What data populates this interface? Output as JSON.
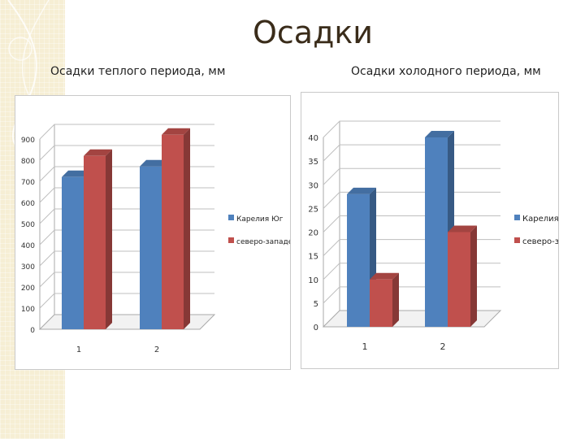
{
  "slide": {
    "title": "Осадки",
    "left_subtitle": "Осадки теплого периода, мм",
    "right_subtitle": "Осадки холодного периода, мм"
  },
  "colors": {
    "series1": "#4f81bd",
    "series2": "#c0504d",
    "grid": "#bfbfbf",
    "deco": "#f6eed4"
  },
  "chart_data": [
    {
      "type": "bar",
      "categories": [
        "1",
        "2"
      ],
      "series": [
        {
          "name": "Карелия Юг",
          "values": [
            720,
            770
          ]
        },
        {
          "name": "северо-западе",
          "values": [
            820,
            920
          ]
        }
      ],
      "yticks": [
        0,
        100,
        200,
        300,
        400,
        500,
        600,
        700,
        800,
        900
      ],
      "ylim": [
        0,
        900
      ],
      "legend": "right",
      "grid": true
    },
    {
      "type": "bar",
      "categories": [
        "1",
        "2"
      ],
      "series": [
        {
          "name": "Карелия Юг",
          "values": [
            28,
            40
          ]
        },
        {
          "name": "северо-западе",
          "values": [
            10,
            20
          ]
        }
      ],
      "yticks": [
        0,
        5,
        10,
        15,
        20,
        25,
        30,
        35,
        40
      ],
      "ylim": [
        0,
        40
      ],
      "legend": "right",
      "grid": true
    }
  ]
}
